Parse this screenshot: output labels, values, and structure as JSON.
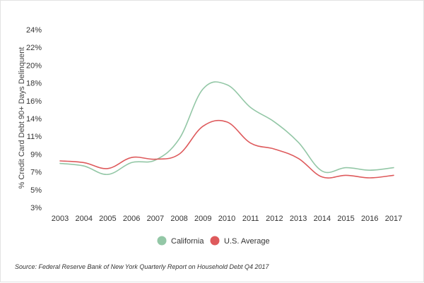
{
  "chart_data": {
    "type": "line",
    "ylabel": "% Credit Card Debt 90+ Days Delinquent",
    "xlabel": "",
    "x": [
      "2003",
      "2004",
      "2005",
      "2006",
      "2007",
      "2008",
      "2009",
      "2010",
      "2011",
      "2012",
      "2013",
      "2014",
      "2015",
      "2016",
      "2017"
    ],
    "y_ticks": [
      "24%",
      "22%",
      "20%",
      "18%",
      "16%",
      "14%",
      "11%",
      "9%",
      "7%",
      "5%",
      "3%"
    ],
    "ylim": [
      3,
      24
    ],
    "grid": false,
    "legend_position": "bottom",
    "series": [
      {
        "name": "California",
        "color": "#93c7a6",
        "values": [
          8.2,
          7.9,
          6.9,
          8.3,
          8.6,
          11.1,
          17.0,
          17.5,
          14.8,
          13.1,
          10.7,
          7.3,
          7.7,
          7.4,
          7.7
        ]
      },
      {
        "name": "U.S. Average",
        "color": "#de5a5c",
        "values": [
          8.5,
          8.3,
          7.6,
          8.9,
          8.7,
          9.3,
          12.6,
          13.1,
          10.6,
          9.9,
          8.8,
          6.6,
          6.8,
          6.5,
          6.8
        ]
      }
    ]
  },
  "source": "Source: Federal Reserve Bank of New York Quarterly Report on Household Debt Q4 2017"
}
